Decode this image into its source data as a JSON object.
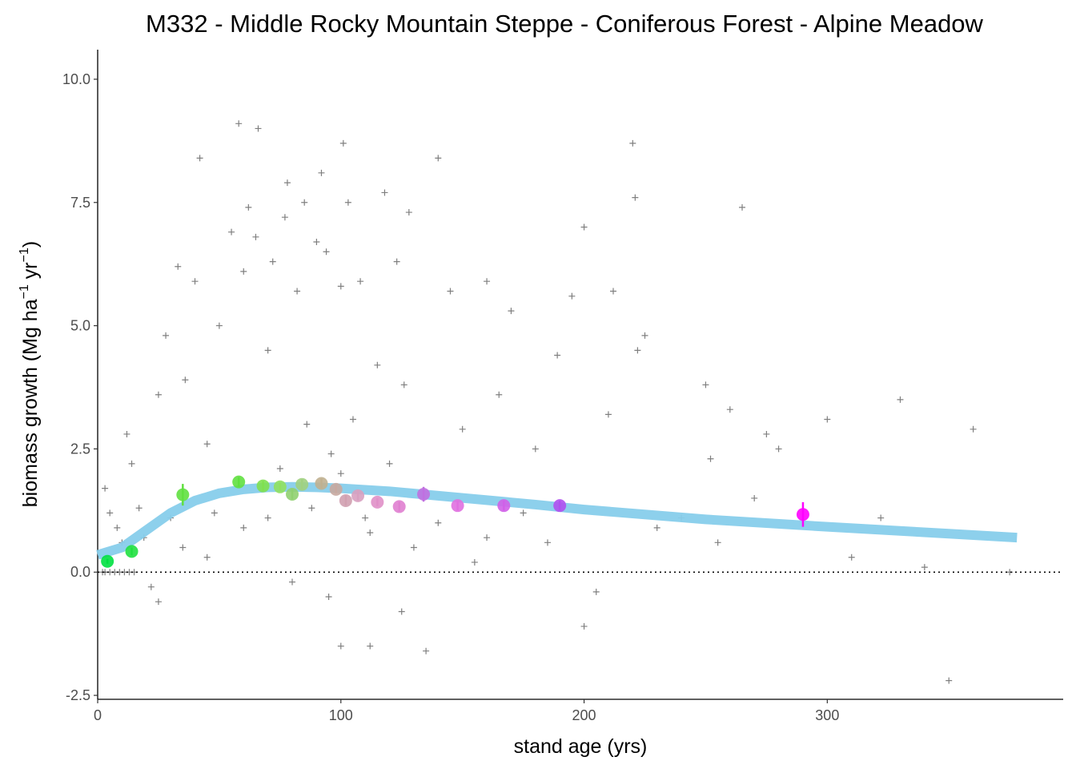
{
  "chart_data": {
    "type": "scatter",
    "title": "M332 -  Middle Rocky Mountain Steppe - Coniferous Forest - Alpine Meadow",
    "x_label": "stand age (yrs)",
    "y_label": [
      "biomass growth (Mg ha",
      "−1",
      " yr",
      "−1",
      ")"
    ],
    "xlim": [
      0,
      397
    ],
    "ylim": [
      -2.58,
      10.6
    ],
    "xticks": [
      0,
      100,
      200,
      300
    ],
    "yticks": [
      {
        "value": -2.5,
        "label": "-2.5"
      },
      {
        "value": 0,
        "label": "0.0"
      },
      2.5,
      {
        "value": 5,
        "label": "5.0"
      },
      7.5,
      {
        "value": 10,
        "label": "10.0"
      }
    ],
    "hline": 0,
    "points": {
      "color": "#000000",
      "x": [
        2,
        3,
        5,
        7,
        9,
        11,
        13,
        15,
        3,
        5,
        8,
        10,
        12,
        14,
        17,
        19,
        22,
        25,
        25,
        28,
        30,
        33,
        36,
        40,
        42,
        45,
        48,
        50,
        55,
        58,
        60,
        62,
        65,
        66,
        70,
        72,
        75,
        77,
        78,
        82,
        85,
        86,
        90,
        92,
        94,
        96,
        100,
        101,
        103,
        105,
        108,
        110,
        112,
        115,
        118,
        120,
        123,
        126,
        128,
        130,
        135,
        140,
        145,
        150,
        155,
        160,
        165,
        170,
        175,
        180,
        185,
        189,
        195,
        200,
        200,
        205,
        210,
        212,
        220,
        221,
        222,
        225,
        230,
        240,
        250,
        252,
        255,
        260,
        265,
        270,
        275,
        280,
        300,
        310,
        322,
        330,
        340,
        350,
        360,
        375,
        95,
        80,
        125,
        60,
        70,
        88,
        100,
        112,
        140,
        160,
        35,
        45,
        100
      ],
      "y": [
        0,
        0,
        0,
        0,
        0,
        0,
        0,
        0,
        1.7,
        1.2,
        0.9,
        0.6,
        2.8,
        2.2,
        1.3,
        0.7,
        -0.3,
        -0.6,
        3.6,
        4.8,
        1.1,
        6.2,
        3.9,
        5.9,
        8.4,
        2.6,
        1.2,
        5.0,
        6.9,
        9.1,
        6.1,
        7.4,
        6.8,
        9.0,
        4.5,
        6.3,
        2.1,
        7.2,
        7.9,
        5.7,
        7.5,
        3.0,
        6.7,
        8.1,
        6.5,
        2.4,
        5.8,
        8.7,
        7.5,
        3.1,
        5.9,
        1.1,
        -1.5,
        4.2,
        7.7,
        2.2,
        6.3,
        3.8,
        7.3,
        0.5,
        -1.6,
        8.4,
        5.7,
        2.9,
        0.2,
        5.9,
        3.6,
        5.3,
        1.2,
        2.5,
        0.6,
        4.4,
        5.6,
        7.0,
        -1.1,
        -0.4,
        3.2,
        5.7,
        8.7,
        7.6,
        4.5,
        4.8,
        0.9,
        1.1,
        3.8,
        2.3,
        0.6,
        3.3,
        7.4,
        1.5,
        2.8,
        2.5,
        3.1,
        0.3,
        1.1,
        3.5,
        0.1,
        -2.2,
        2.9,
        0,
        -0.5,
        -0.2,
        -0.8,
        0.9,
        1.1,
        1.3,
        2.0,
        0.8,
        1.0,
        0.7,
        0.5,
        0.3,
        -1.5
      ]
    },
    "fit": {
      "color": "#87ceeb",
      "x": [
        0,
        10,
        20,
        30,
        40,
        50,
        60,
        70,
        80,
        90,
        100,
        120,
        140,
        160,
        180,
        200,
        250,
        300,
        350,
        378
      ],
      "y": [
        0.35,
        0.5,
        0.85,
        1.2,
        1.45,
        1.6,
        1.68,
        1.72,
        1.73,
        1.72,
        1.7,
        1.64,
        1.55,
        1.46,
        1.37,
        1.27,
        1.07,
        0.92,
        0.78,
        0.7
      ]
    },
    "means": {
      "x": [
        4,
        14,
        35,
        58,
        68,
        75,
        80,
        84,
        92,
        98,
        102,
        107,
        115,
        124,
        134,
        148,
        167,
        190,
        290
      ],
      "y": [
        0.22,
        0.42,
        1.57,
        1.83,
        1.75,
        1.73,
        1.58,
        1.78,
        1.8,
        1.68,
        1.45,
        1.55,
        1.42,
        1.33,
        1.58,
        1.35,
        1.35,
        1.35,
        1.17
      ],
      "errors": [
        0.05,
        0.08,
        0.22,
        0.1,
        0.1,
        0.08,
        0.1,
        0.1,
        0.1,
        0.08,
        0.1,
        0.1,
        0.08,
        0.1,
        0.15,
        0.1,
        0.1,
        0.1,
        0.25
      ],
      "colors": [
        "#00e040",
        "#20e040",
        "#60e040",
        "#60e040",
        "#80e050",
        "#90e060",
        "#90d070",
        "#a0d080",
        "#c0b090",
        "#c8a8a0",
        "#d0a0b0",
        "#d8a0c0",
        "#e090c8",
        "#e080d0",
        "#c070e0",
        "#e070e0",
        "#d060e8",
        "#b050f0",
        "#ff00ff"
      ]
    }
  }
}
